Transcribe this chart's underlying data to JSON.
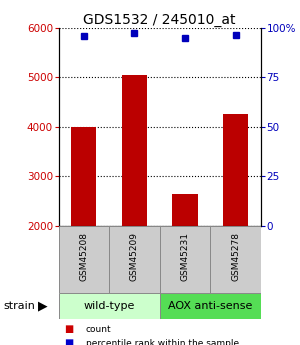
{
  "title": "GDS1532 / 245010_at",
  "samples": [
    "GSM45208",
    "GSM45209",
    "GSM45231",
    "GSM45278"
  ],
  "counts": [
    4000,
    5050,
    2650,
    4250
  ],
  "percentiles": [
    96,
    97.5,
    95,
    96.5
  ],
  "ylim_left": [
    2000,
    6000
  ],
  "ylim_right": [
    0,
    100
  ],
  "yticks_left": [
    2000,
    3000,
    4000,
    5000,
    6000
  ],
  "yticks_right": [
    0,
    25,
    50,
    75,
    100
  ],
  "bar_color": "#bb0000",
  "dot_color": "#0000bb",
  "bar_bottom": 2000,
  "groups": [
    {
      "label": "wild-type",
      "spans": [
        0,
        1
      ],
      "color": "#ccffcc",
      "darker": "#99ee99"
    },
    {
      "label": "AOX anti-sense",
      "spans": [
        2,
        3
      ],
      "color": "#66ee66",
      "darker": "#44cc44"
    }
  ],
  "bg_color": "#ffffff",
  "tick_label_color_left": "#cc0000",
  "tick_label_color_right": "#0000cc",
  "sample_box_color": "#cccccc",
  "strain_label": "strain",
  "legend_count_color": "#cc0000",
  "legend_pct_color": "#0000cc"
}
